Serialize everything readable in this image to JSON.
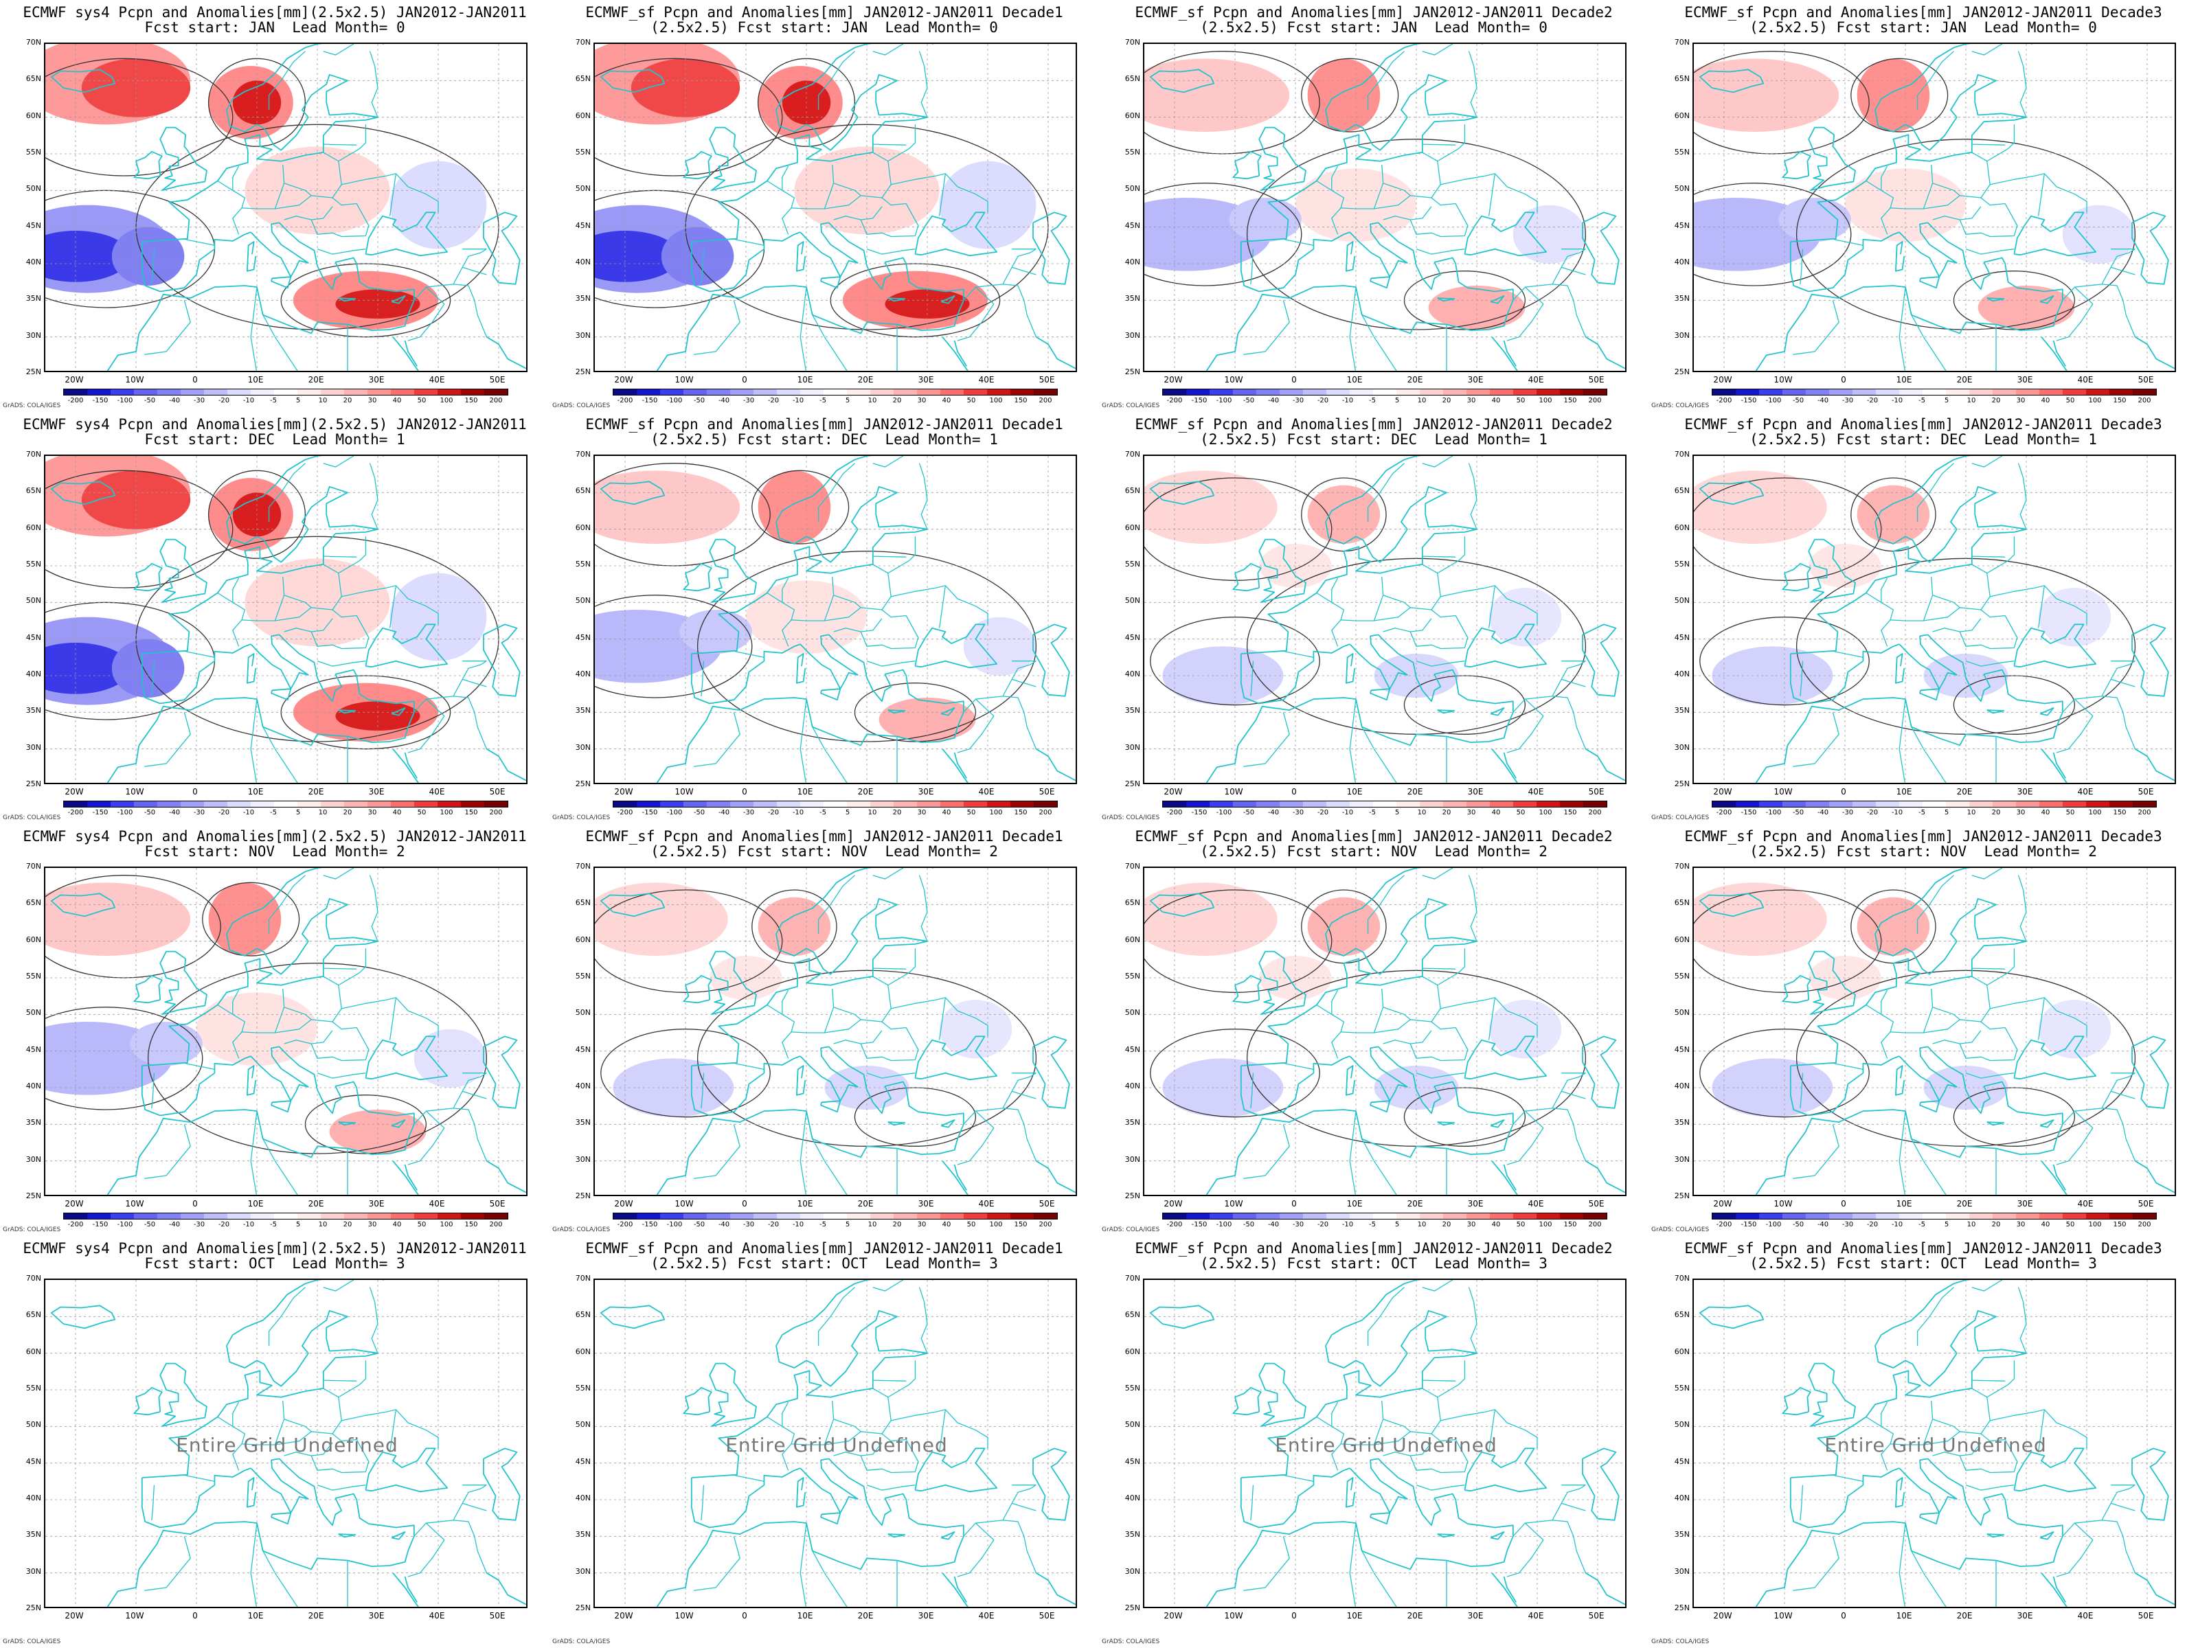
{
  "panels": [
    {
      "title1": "ECMWF sys4 Pcpn and Anomalies[mm](2.5x2.5) JAN2012-JAN2011",
      "title2": "Fcst start: JAN  Lead Month= 0",
      "pattern": "strong",
      "undefined": false
    },
    {
      "title1": "ECMWF_sf Pcpn and Anomalies[mm] JAN2012-JAN2011 Decade1",
      "title2": "(2.5x2.5) Fcst start: JAN  Lead Month= 0",
      "pattern": "strong",
      "undefined": false
    },
    {
      "title1": "ECMWF_sf Pcpn and Anomalies[mm] JAN2012-JAN2011 Decade2",
      "title2": "(2.5x2.5) Fcst start: JAN  Lead Month= 0",
      "pattern": "medium",
      "undefined": false
    },
    {
      "title1": "ECMWF_sf Pcpn and Anomalies[mm] JAN2012-JAN2011 Decade3",
      "title2": "(2.5x2.5) Fcst start: JAN  Lead Month= 0",
      "pattern": "medium",
      "undefined": false
    },
    {
      "title1": "ECMWF sys4 Pcpn and Anomalies[mm](2.5x2.5) JAN2012-JAN2011",
      "title2": "Fcst start: DEC  Lead Month= 1",
      "pattern": "strong",
      "undefined": false
    },
    {
      "title1": "ECMWF_sf Pcpn and Anomalies[mm] JAN2012-JAN2011 Decade1",
      "title2": "(2.5x2.5) Fcst start: DEC  Lead Month= 1",
      "pattern": "medium",
      "undefined": false
    },
    {
      "title1": "ECMWF_sf Pcpn and Anomalies[mm] JAN2012-JAN2011 Decade2",
      "title2": "(2.5x2.5) Fcst start: DEC  Lead Month= 1",
      "pattern": "weak",
      "undefined": false
    },
    {
      "title1": "ECMWF_sf Pcpn and Anomalies[mm] JAN2012-JAN2011 Decade3",
      "title2": "(2.5x2.5) Fcst start: DEC  Lead Month= 1",
      "pattern": "weak",
      "undefined": false
    },
    {
      "title1": "ECMWF sys4 Pcpn and Anomalies[mm](2.5x2.5) JAN2012-JAN2011",
      "title2": "Fcst start: NOV  Lead Month= 2",
      "pattern": "medium",
      "undefined": false
    },
    {
      "title1": "ECMWF_sf Pcpn and Anomalies[mm] JAN2012-JAN2011 Decade1",
      "title2": "(2.5x2.5) Fcst start: NOV  Lead Month= 2",
      "pattern": "weak",
      "undefined": false
    },
    {
      "title1": "ECMWF_sf Pcpn and Anomalies[mm] JAN2012-JAN2011 Decade2",
      "title2": "(2.5x2.5) Fcst start: NOV  Lead Month= 2",
      "pattern": "weak",
      "undefined": false
    },
    {
      "title1": "ECMWF_sf Pcpn and Anomalies[mm] JAN2012-JAN2011 Decade3",
      "title2": "(2.5x2.5) Fcst start: NOV  Lead Month= 2",
      "pattern": "weak",
      "undefined": false
    },
    {
      "title1": "ECMWF sys4 Pcpn and Anomalies[mm](2.5x2.5) JAN2012-JAN2011",
      "title2": "Fcst start: OCT  Lead Month= 3",
      "pattern": "none",
      "undefined": true
    },
    {
      "title1": "ECMWF_sf Pcpn and Anomalies[mm] JAN2012-JAN2011 Decade1",
      "title2": "(2.5x2.5) Fcst start: OCT  Lead Month= 3",
      "pattern": "none",
      "undefined": true
    },
    {
      "title1": "ECMWF_sf Pcpn and Anomalies[mm] JAN2012-JAN2011 Decade2",
      "title2": "(2.5x2.5) Fcst start: OCT  Lead Month= 3",
      "pattern": "none",
      "undefined": true
    },
    {
      "title1": "ECMWF_sf Pcpn and Anomalies[mm] JAN2012-JAN2011 Decade3",
      "title2": "(2.5x2.5) Fcst start: OCT  Lead Month= 3",
      "pattern": "none",
      "undefined": true
    }
  ],
  "lat_labels": [
    "70N",
    "65N",
    "60N",
    "55N",
    "50N",
    "45N",
    "40N",
    "35N",
    "30N",
    "25N"
  ],
  "lon_labels": [
    "20W",
    "10W",
    "0",
    "10E",
    "20E",
    "30E",
    "40E",
    "50E"
  ],
  "colorbar_labels": [
    "-200",
    "-150",
    "-100",
    "-50",
    "-40",
    "-30",
    "-20",
    "-10",
    "-5",
    "5",
    "10",
    "20",
    "30",
    "40",
    "50",
    "100",
    "150",
    "200"
  ],
  "colorbar_colors": [
    "#0a0a8c",
    "#1414d2",
    "#3c3cf0",
    "#6464f5",
    "#8282f8",
    "#a0a0fa",
    "#bebefc",
    "#dcdcfe",
    "#f0f0ff",
    "#ffffff",
    "#ffecec",
    "#ffd2d2",
    "#ffb4b4",
    "#ff9696",
    "#ff6e6e",
    "#f03c3c",
    "#d21414",
    "#a00000",
    "#780000"
  ],
  "credit": "GrADS: COLA/IGES",
  "undefined_text": "Entire Grid Undefined",
  "colors": {
    "coast": "#22c4cc",
    "contour": "#333333",
    "grid": "#9a9a9a"
  }
}
